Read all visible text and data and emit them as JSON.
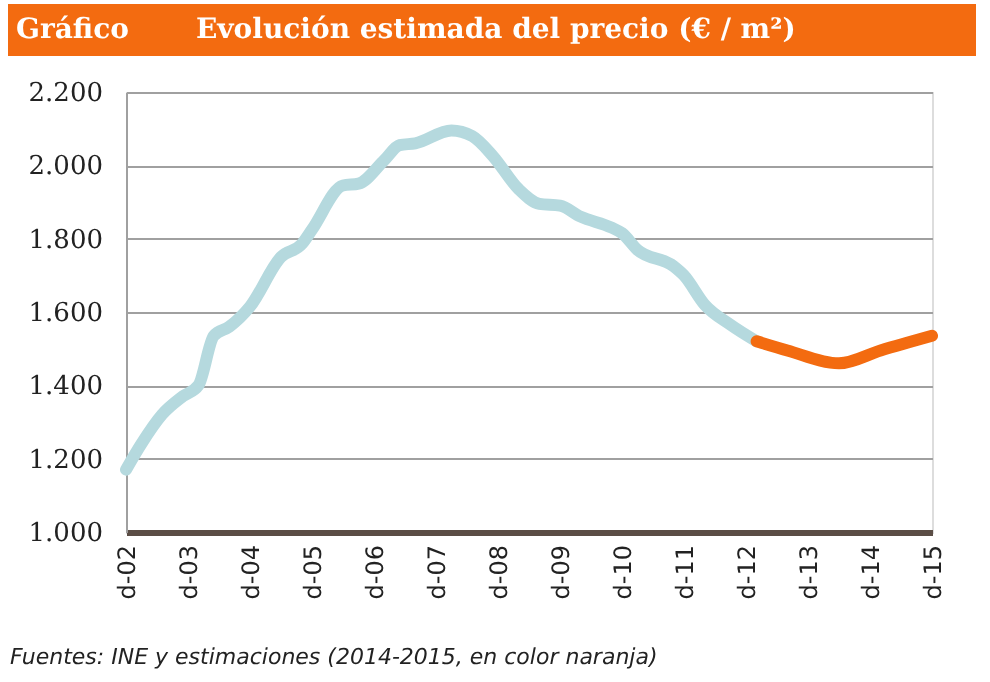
{
  "chart_data": {
    "type": "line",
    "title": "Evolución estimada del precio (€ / m²)",
    "annotations": [
      "Gráfico",
      "Fuentes: INE y estimaciones (2014-2015, en color naranja)"
    ],
    "series": [
      {
        "color": "#b5d9de",
        "x": [
          "2002-12",
          "2003-03",
          "2003-07",
          "2003-11",
          "2004-02",
          "2004-05",
          "2004-08",
          "2004-12",
          "2005-06",
          "2005-10",
          "2005-12",
          "2006-06",
          "2006-09",
          "2007-02",
          "2007-05",
          "2007-08",
          "2008-03",
          "2008-07",
          "2008-11",
          "2009-04",
          "2009-08",
          "2009-12",
          "2010-04",
          "2010-10",
          "2010-12",
          "2011-03",
          "2011-10",
          "2011-12",
          "2012-04",
          "2012-09",
          "2013-02"
        ],
        "values": [
          1170,
          1240,
          1320,
          1370,
          1400,
          1535,
          1560,
          1615,
          1750,
          1785,
          1825,
          1945,
          1950,
          2015,
          2055,
          2060,
          2095,
          2080,
          2025,
          1935,
          1895,
          1890,
          1860,
          1830,
          1815,
          1770,
          1725,
          1700,
          1620,
          1565,
          1520
        ]
      },
      {
        "color": "#f36b10",
        "x": [
          "2013-02",
          "2013-08",
          "2014-06",
          "2015-02",
          "2015-12"
        ],
        "values": [
          1520,
          1495,
          1460,
          1495,
          1535
        ]
      }
    ],
    "xlim": [
      "2002-12",
      "2015-12"
    ],
    "xticks": [
      {
        "value": "2002-12",
        "label": "d-02"
      },
      {
        "value": "2003-12",
        "label": "d-03"
      },
      {
        "value": "2004-12",
        "label": "d-04"
      },
      {
        "value": "2005-12",
        "label": "d-05"
      },
      {
        "value": "2006-12",
        "label": "d-06"
      },
      {
        "value": "2007-12",
        "label": "d-07"
      },
      {
        "value": "2008-12",
        "label": "d-08"
      },
      {
        "value": "2009-12",
        "label": "d-09"
      },
      {
        "value": "2010-12",
        "label": "d-10"
      },
      {
        "value": "2011-12",
        "label": "d-11"
      },
      {
        "value": "2012-12",
        "label": "d-12"
      },
      {
        "value": "2013-12",
        "label": "d-13"
      },
      {
        "value": "2014-12",
        "label": "d-14"
      },
      {
        "value": "2015-12",
        "label": "d-15"
      }
    ],
    "ylim": [
      1000,
      2200
    ],
    "yticks": [
      {
        "value": 1000,
        "label": "1.000"
      },
      {
        "value": 1200,
        "label": "1.200"
      },
      {
        "value": 1400,
        "label": "1.400"
      },
      {
        "value": 1600,
        "label": "1.600"
      },
      {
        "value": 1800,
        "label": "1.800"
      },
      {
        "value": 2000,
        "label": "2.000"
      },
      {
        "value": 2200,
        "label": "2.200"
      }
    ],
    "grid": "y",
    "legend": false,
    "marker": "none",
    "line_style": "solid"
  }
}
